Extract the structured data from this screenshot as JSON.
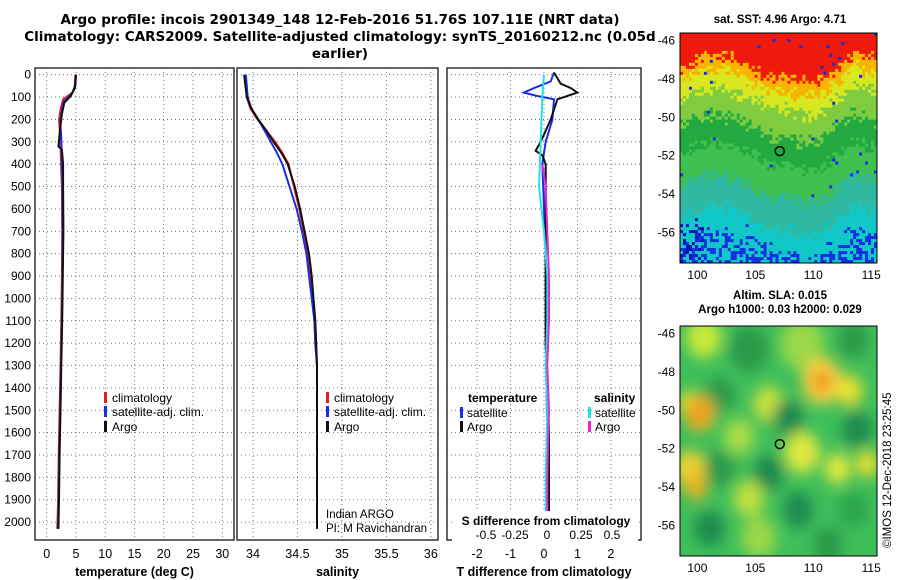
{
  "header": {
    "line1": "Argo profile: incois 2901349_148 12-Feb-2016 51.76S 107.11E (NRT data)",
    "line2": "Climatology: CARS2009. Satellite-adjusted climatology: synTS_20160212.nc (0.05d earlier)"
  },
  "colors": {
    "climatology": "#e0201c",
    "satellite": "#1a2ee6",
    "argo": "#111111",
    "satellite_sal": "#22e0e6",
    "argo_sal": "#e626d8"
  },
  "depth_axis": {
    "ylim": [
      -30,
      2080
    ],
    "ticks": [
      0,
      100,
      200,
      300,
      400,
      500,
      600,
      700,
      800,
      900,
      1000,
      1100,
      1200,
      1300,
      1400,
      1500,
      1600,
      1700,
      1800,
      1900,
      2000
    ]
  },
  "legend_labels": {
    "climatology": "climatology",
    "satellite": "satellite-adj. clim.",
    "argo": "Argo",
    "diff_temperature": "temperature",
    "diff_salinity": "salinity",
    "diff_satellite": "satellite",
    "diff_argo": "Argo"
  },
  "credits": {
    "line1": "Indian ARGO",
    "line2": "PI: M Ravichandran"
  },
  "map1": {
    "title": "sat. SST: 4.96 Argo: 4.71",
    "xticks": [
      100,
      105,
      110,
      115
    ],
    "yticks": [
      -46,
      -48,
      -50,
      -52,
      -54,
      -56
    ],
    "xlim": [
      98.5,
      115.5
    ],
    "ylim": [
      -57.6,
      -45.6
    ],
    "argo_lon": 107.11,
    "argo_lat": -51.76
  },
  "map2": {
    "title1": "Altim. SLA: 0.015",
    "title2": "Argo h1000: 0.03 h2000: 0.029",
    "xticks": [
      100,
      105,
      110,
      115
    ],
    "yticks": [
      -46,
      -48,
      -50,
      -52,
      -54,
      -56
    ],
    "xlim": [
      98.5,
      115.5
    ],
    "ylim": [
      -57.6,
      -45.6
    ],
    "argo_lon": 107.11,
    "argo_lat": -51.76
  },
  "watermark": "©IMOS 12-Dec-2018 23:25:45",
  "chart_data": [
    {
      "type": "line",
      "xlabel": "temperature (deg C)",
      "xticks": [
        0,
        5,
        10,
        15,
        20,
        25,
        30
      ],
      "xlim": [
        -2,
        32
      ],
      "series": [
        {
          "name": "climatology",
          "color": "#e0201c",
          "points": [
            [
              4.9,
              0
            ],
            [
              4.8,
              50
            ],
            [
              4.4,
              80
            ],
            [
              2.8,
              110
            ],
            [
              2.4,
              150
            ],
            [
              2.1,
              200
            ],
            [
              2.25,
              260
            ],
            [
              2.35,
              300
            ],
            [
              2.45,
              400
            ],
            [
              2.6,
              500
            ],
            [
              2.65,
              700
            ],
            [
              2.6,
              900
            ],
            [
              2.5,
              1100
            ],
            [
              2.35,
              1300
            ],
            [
              2.2,
              1500
            ],
            [
              2.05,
              1700
            ],
            [
              1.95,
              1900
            ],
            [
              1.85,
              2000
            ],
            [
              1.8,
              2030
            ]
          ]
        },
        {
          "name": "satellite-adj. clim.",
          "color": "#1a2ee6",
          "points": [
            [
              5.0,
              0
            ],
            [
              4.9,
              50
            ],
            [
              4.3,
              85
            ],
            [
              2.9,
              120
            ],
            [
              2.6,
              160
            ],
            [
              2.3,
              210
            ],
            [
              2.5,
              280
            ],
            [
              2.6,
              400
            ],
            [
              2.7,
              500
            ],
            [
              2.75,
              700
            ],
            [
              2.7,
              900
            ],
            [
              2.6,
              1100
            ],
            [
              2.45,
              1300
            ],
            [
              2.3,
              1500
            ],
            [
              2.15,
              1700
            ],
            [
              2.05,
              1900
            ],
            [
              1.95,
              2030
            ]
          ]
        },
        {
          "name": "Argo",
          "color": "#111111",
          "points": [
            [
              5.0,
              0
            ],
            [
              4.8,
              60
            ],
            [
              4.1,
              95
            ],
            [
              3.0,
              125
            ],
            [
              2.6,
              175
            ],
            [
              2.3,
              240
            ],
            [
              2.0,
              320
            ],
            [
              2.6,
              335
            ],
            [
              2.8,
              400
            ],
            [
              2.8,
              500
            ],
            [
              2.85,
              700
            ],
            [
              2.75,
              900
            ],
            [
              2.65,
              1100
            ],
            [
              2.5,
              1300
            ],
            [
              2.35,
              1500
            ],
            [
              2.2,
              1700
            ],
            [
              2.1,
              1900
            ],
            [
              2.0,
              2030
            ]
          ]
        }
      ]
    },
    {
      "type": "line",
      "xlabel": "salinity",
      "xticks": [
        34,
        34.5,
        35,
        35.5,
        36
      ],
      "xlim": [
        33.82,
        36.08
      ],
      "series": [
        {
          "name": "climatology",
          "color": "#e0201c",
          "points": [
            [
              33.91,
              0
            ],
            [
              33.93,
              100
            ],
            [
              33.97,
              150
            ],
            [
              34.05,
              200
            ],
            [
              34.15,
              250
            ],
            [
              34.25,
              300
            ],
            [
              34.33,
              350
            ],
            [
              34.4,
              400
            ],
            [
              34.46,
              500
            ],
            [
              34.52,
              600
            ],
            [
              34.57,
              700
            ],
            [
              34.61,
              800
            ],
            [
              34.64,
              900
            ],
            [
              34.67,
              1000
            ],
            [
              34.69,
              1100
            ],
            [
              34.7,
              1200
            ],
            [
              34.72,
              1300
            ],
            [
              34.72,
              1500
            ],
            [
              34.72,
              1800
            ],
            [
              34.72,
              2030
            ]
          ]
        },
        {
          "name": "satellite-adj. clim.",
          "color": "#1a2ee6",
          "points": [
            [
              33.92,
              0
            ],
            [
              33.94,
              100
            ],
            [
              33.98,
              150
            ],
            [
              34.06,
              200
            ],
            [
              34.13,
              250
            ],
            [
              34.2,
              300
            ],
            [
              34.27,
              350
            ],
            [
              34.33,
              400
            ],
            [
              34.41,
              500
            ],
            [
              34.49,
              600
            ],
            [
              34.55,
              700
            ],
            [
              34.6,
              800
            ],
            [
              34.63,
              900
            ],
            [
              34.66,
              1000
            ],
            [
              34.69,
              1100
            ],
            [
              34.7,
              1200
            ],
            [
              34.72,
              1300
            ],
            [
              34.72,
              1500
            ],
            [
              34.72,
              1800
            ],
            [
              34.72,
              2030
            ]
          ]
        },
        {
          "name": "Argo",
          "color": "#111111",
          "points": [
            [
              33.9,
              0
            ],
            [
              33.93,
              100
            ],
            [
              33.98,
              150
            ],
            [
              34.06,
              200
            ],
            [
              34.15,
              250
            ],
            [
              34.23,
              300
            ],
            [
              34.32,
              350
            ],
            [
              34.39,
              400
            ],
            [
              34.47,
              500
            ],
            [
              34.53,
              600
            ],
            [
              34.58,
              700
            ],
            [
              34.63,
              800
            ],
            [
              34.66,
              900
            ],
            [
              34.68,
              1000
            ],
            [
              34.7,
              1100
            ],
            [
              34.71,
              1200
            ],
            [
              34.72,
              1300
            ],
            [
              34.72,
              1500
            ],
            [
              34.72,
              1800
            ],
            [
              34.72,
              2030
            ]
          ]
        }
      ]
    },
    {
      "type": "line",
      "xlabel": "T difference from climatology",
      "top_xlabel": "S difference from climatology",
      "xticks": [
        -2,
        -1,
        0,
        1,
        2
      ],
      "xlim": [
        -2.9,
        2.9
      ],
      "top_xticks": [
        "-0.5",
        "-0.25",
        "0",
        "0.25",
        "0.5"
      ],
      "series": [
        {
          "name": "temperature satellite",
          "color": "#1a2ee6",
          "points": [
            [
              0.3,
              -10
            ],
            [
              0.2,
              30
            ],
            [
              -0.3,
              60
            ],
            [
              -0.6,
              80
            ],
            [
              -0.2,
              95
            ],
            [
              0.3,
              110
            ],
            [
              0.25,
              200
            ],
            [
              0.05,
              300
            ],
            [
              -0.05,
              400
            ],
            [
              0.0,
              600
            ],
            [
              0.05,
              800
            ],
            [
              0.05,
              1200
            ],
            [
              0.1,
              1600
            ],
            [
              0.1,
              2030
            ]
          ]
        },
        {
          "name": "temperature Argo",
          "color": "#111111",
          "points": [
            [
              0.3,
              -10
            ],
            [
              0.5,
              40
            ],
            [
              0.8,
              60
            ],
            [
              1.0,
              80
            ],
            [
              0.4,
              110
            ],
            [
              0.2,
              200
            ],
            [
              -0.1,
              300
            ],
            [
              -0.25,
              340
            ],
            [
              -0.05,
              360
            ],
            [
              0.05,
              400
            ],
            [
              0.05,
              800
            ],
            [
              0.05,
              1200
            ],
            [
              0.15,
              1600
            ],
            [
              0.15,
              2030
            ]
          ]
        },
        {
          "name": "salinity satellite",
          "color": "#22e0e6",
          "points": [
            [
              0.0,
              0
            ],
            [
              -0.05,
              100
            ],
            [
              -0.1,
              300
            ],
            [
              -0.15,
              500
            ],
            [
              0.0,
              700
            ],
            [
              0.1,
              900
            ],
            [
              0.1,
              1100
            ],
            [
              0.05,
              1300
            ],
            [
              0.1,
              1500
            ],
            [
              0.05,
              1800
            ],
            [
              0.05,
              2030
            ]
          ]
        },
        {
          "name": "salinity Argo",
          "color": "#e626d8",
          "points": [
            [
              -0.05,
              400
            ],
            [
              0.05,
              500
            ],
            [
              0.1,
              700
            ],
            [
              0.15,
              900
            ],
            [
              0.15,
              1100
            ],
            [
              0.1,
              1300
            ],
            [
              0.15,
              1500
            ],
            [
              0.1,
              1800
            ],
            [
              0.1,
              2030
            ]
          ]
        }
      ]
    }
  ]
}
